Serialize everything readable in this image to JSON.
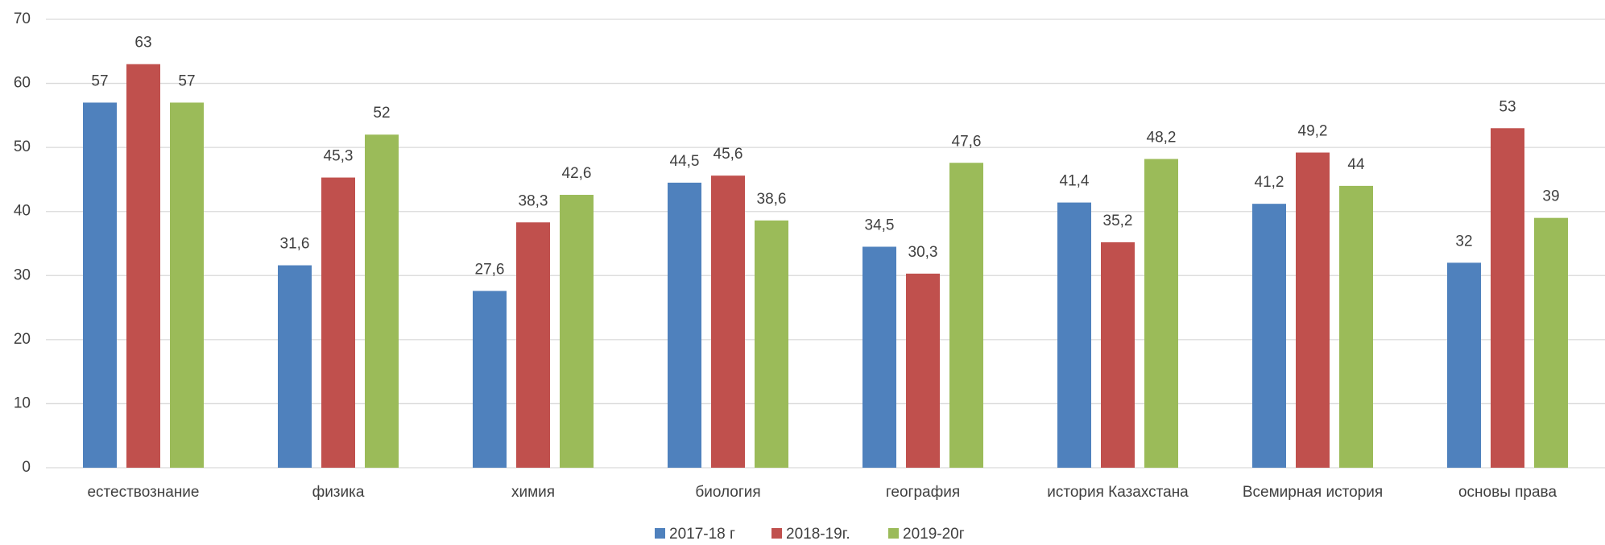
{
  "chart_data": {
    "type": "bar",
    "categories": [
      "естествознание",
      "физика",
      "химия",
      "биология",
      "география",
      "история Казахстана",
      "Всемирная история",
      "основы права"
    ],
    "series": [
      {
        "name": "2017-18 г",
        "color": "#4f81bd",
        "values": [
          57,
          31.6,
          27.6,
          44.5,
          34.5,
          41.4,
          41.2,
          32
        ],
        "value_labels": [
          "57",
          "31,6",
          "27,6",
          "44,5",
          "34,5",
          "41,4",
          "41,2",
          "32"
        ]
      },
      {
        "name": "2018-19г.",
        "color": "#c0504d",
        "values": [
          63,
          45.3,
          38.3,
          45.6,
          30.3,
          35.2,
          49.2,
          53
        ],
        "value_labels": [
          "63",
          "45,3",
          "38,3",
          "45,6",
          "30,3",
          "35,2",
          "49,2",
          "53"
        ]
      },
      {
        "name": "2019-20г",
        "color": "#9bbb59",
        "values": [
          57,
          52,
          42.6,
          38.6,
          47.6,
          48.2,
          44,
          39
        ],
        "value_labels": [
          "57",
          "52",
          "42,6",
          "38,6",
          "47,6",
          "48,2",
          "44",
          "39"
        ]
      }
    ],
    "ylim": [
      0,
      70
    ],
    "yticks": [
      0,
      10,
      20,
      30,
      40,
      50,
      60,
      70
    ],
    "grid": true,
    "legend": "bottom"
  }
}
